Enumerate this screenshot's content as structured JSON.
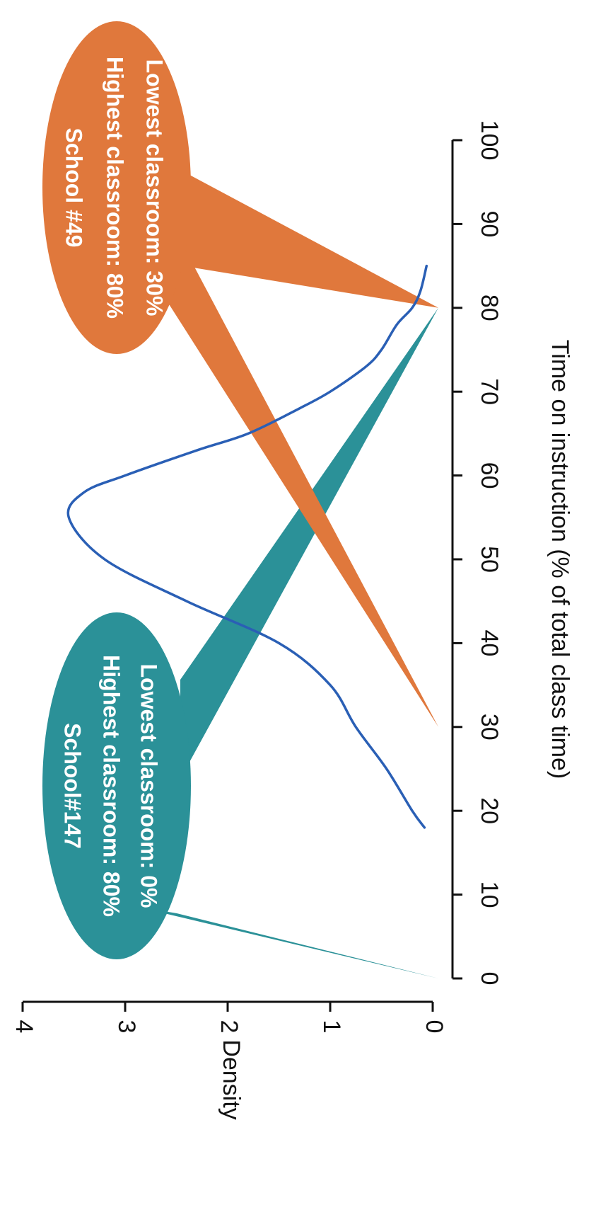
{
  "chart_data": {
    "type": "line",
    "xlabel": "Time on instruction (% of total class time)",
    "ylabel": "Density",
    "xlim": [
      0,
      100
    ],
    "ylim": [
      0,
      4
    ],
    "x_ticks": [
      0,
      10,
      20,
      30,
      40,
      50,
      60,
      70,
      80,
      90,
      100
    ],
    "y_ticks": [
      0,
      1,
      2,
      3,
      4
    ],
    "orientation": "rotated 90 degrees clockwise",
    "series": [
      {
        "color": "#2a5fb5",
        "points": [
          [
            18,
            0.08
          ],
          [
            20,
            0.2
          ],
          [
            25,
            0.45
          ],
          [
            30,
            0.75
          ],
          [
            35,
            1.0
          ],
          [
            40,
            1.5
          ],
          [
            45,
            2.4
          ],
          [
            50,
            3.2
          ],
          [
            55,
            3.55
          ],
          [
            58,
            3.4
          ],
          [
            60,
            3.0
          ],
          [
            63,
            2.3
          ],
          [
            65,
            1.8
          ],
          [
            68,
            1.3
          ],
          [
            70,
            1.0
          ],
          [
            73,
            0.65
          ],
          [
            75,
            0.5
          ],
          [
            78,
            0.35
          ],
          [
            80,
            0.2
          ],
          [
            82,
            0.12
          ],
          [
            85,
            0.06
          ]
        ]
      }
    ],
    "annotations": [
      {
        "title": "School#147",
        "line1": "Highest classroom: 80%",
        "line2": "Lowest classroom: 0%",
        "color": "#2b9198",
        "pointers_x": [
          80,
          0
        ]
      },
      {
        "title": "School #49",
        "line1": "Highest classroom: 80%",
        "line2": "Lowest classroom: 30%",
        "color": "#e0783c",
        "pointers_x": [
          80,
          30
        ]
      }
    ]
  }
}
